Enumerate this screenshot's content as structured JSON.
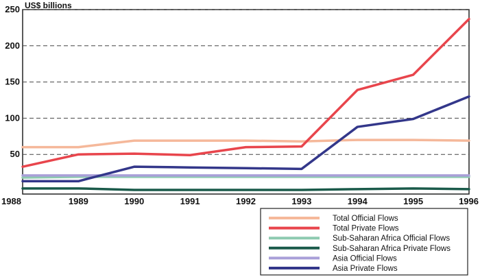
{
  "chart_data": {
    "type": "line",
    "title": "",
    "ylabel": "US$ billions",
    "xlabel": "",
    "x": [
      "1988",
      "1989",
      "1990",
      "1991",
      "1992",
      "1993",
      "1994",
      "1995",
      "1996"
    ],
    "ylim": [
      0,
      250
    ],
    "yticks": [
      50,
      100,
      150,
      200,
      250
    ],
    "grid": "horizontal-dashed",
    "legend_position": "bottom-right",
    "series": [
      {
        "name": "Total Official Flows",
        "color": "#f5b89a",
        "values": [
          60,
          60,
          69,
          69,
          69,
          68,
          70,
          70,
          69
        ]
      },
      {
        "name": "Total Private Flows",
        "color": "#e8454c",
        "values": [
          33,
          50,
          51,
          49,
          60,
          61,
          139,
          160,
          237
        ]
      },
      {
        "name": "Sub-Saharan Africa Official Flows",
        "color": "#8ecab0",
        "values": [
          18,
          19,
          19,
          19,
          19,
          19,
          19,
          19,
          19
        ]
      },
      {
        "name": "Sub-Saharan Africa Private Flows",
        "color": "#1a5a4a",
        "values": [
          3,
          3,
          1,
          1,
          1,
          1,
          2,
          3,
          2
        ]
      },
      {
        "name": "Asia Official Flows",
        "color": "#a99fd8",
        "values": [
          21,
          21,
          21,
          21,
          21,
          21,
          21,
          21,
          21
        ]
      },
      {
        "name": "Asia Private Flows",
        "color": "#33378a",
        "values": [
          13,
          13,
          33,
          32,
          31,
          30,
          88,
          99,
          130
        ]
      }
    ]
  }
}
